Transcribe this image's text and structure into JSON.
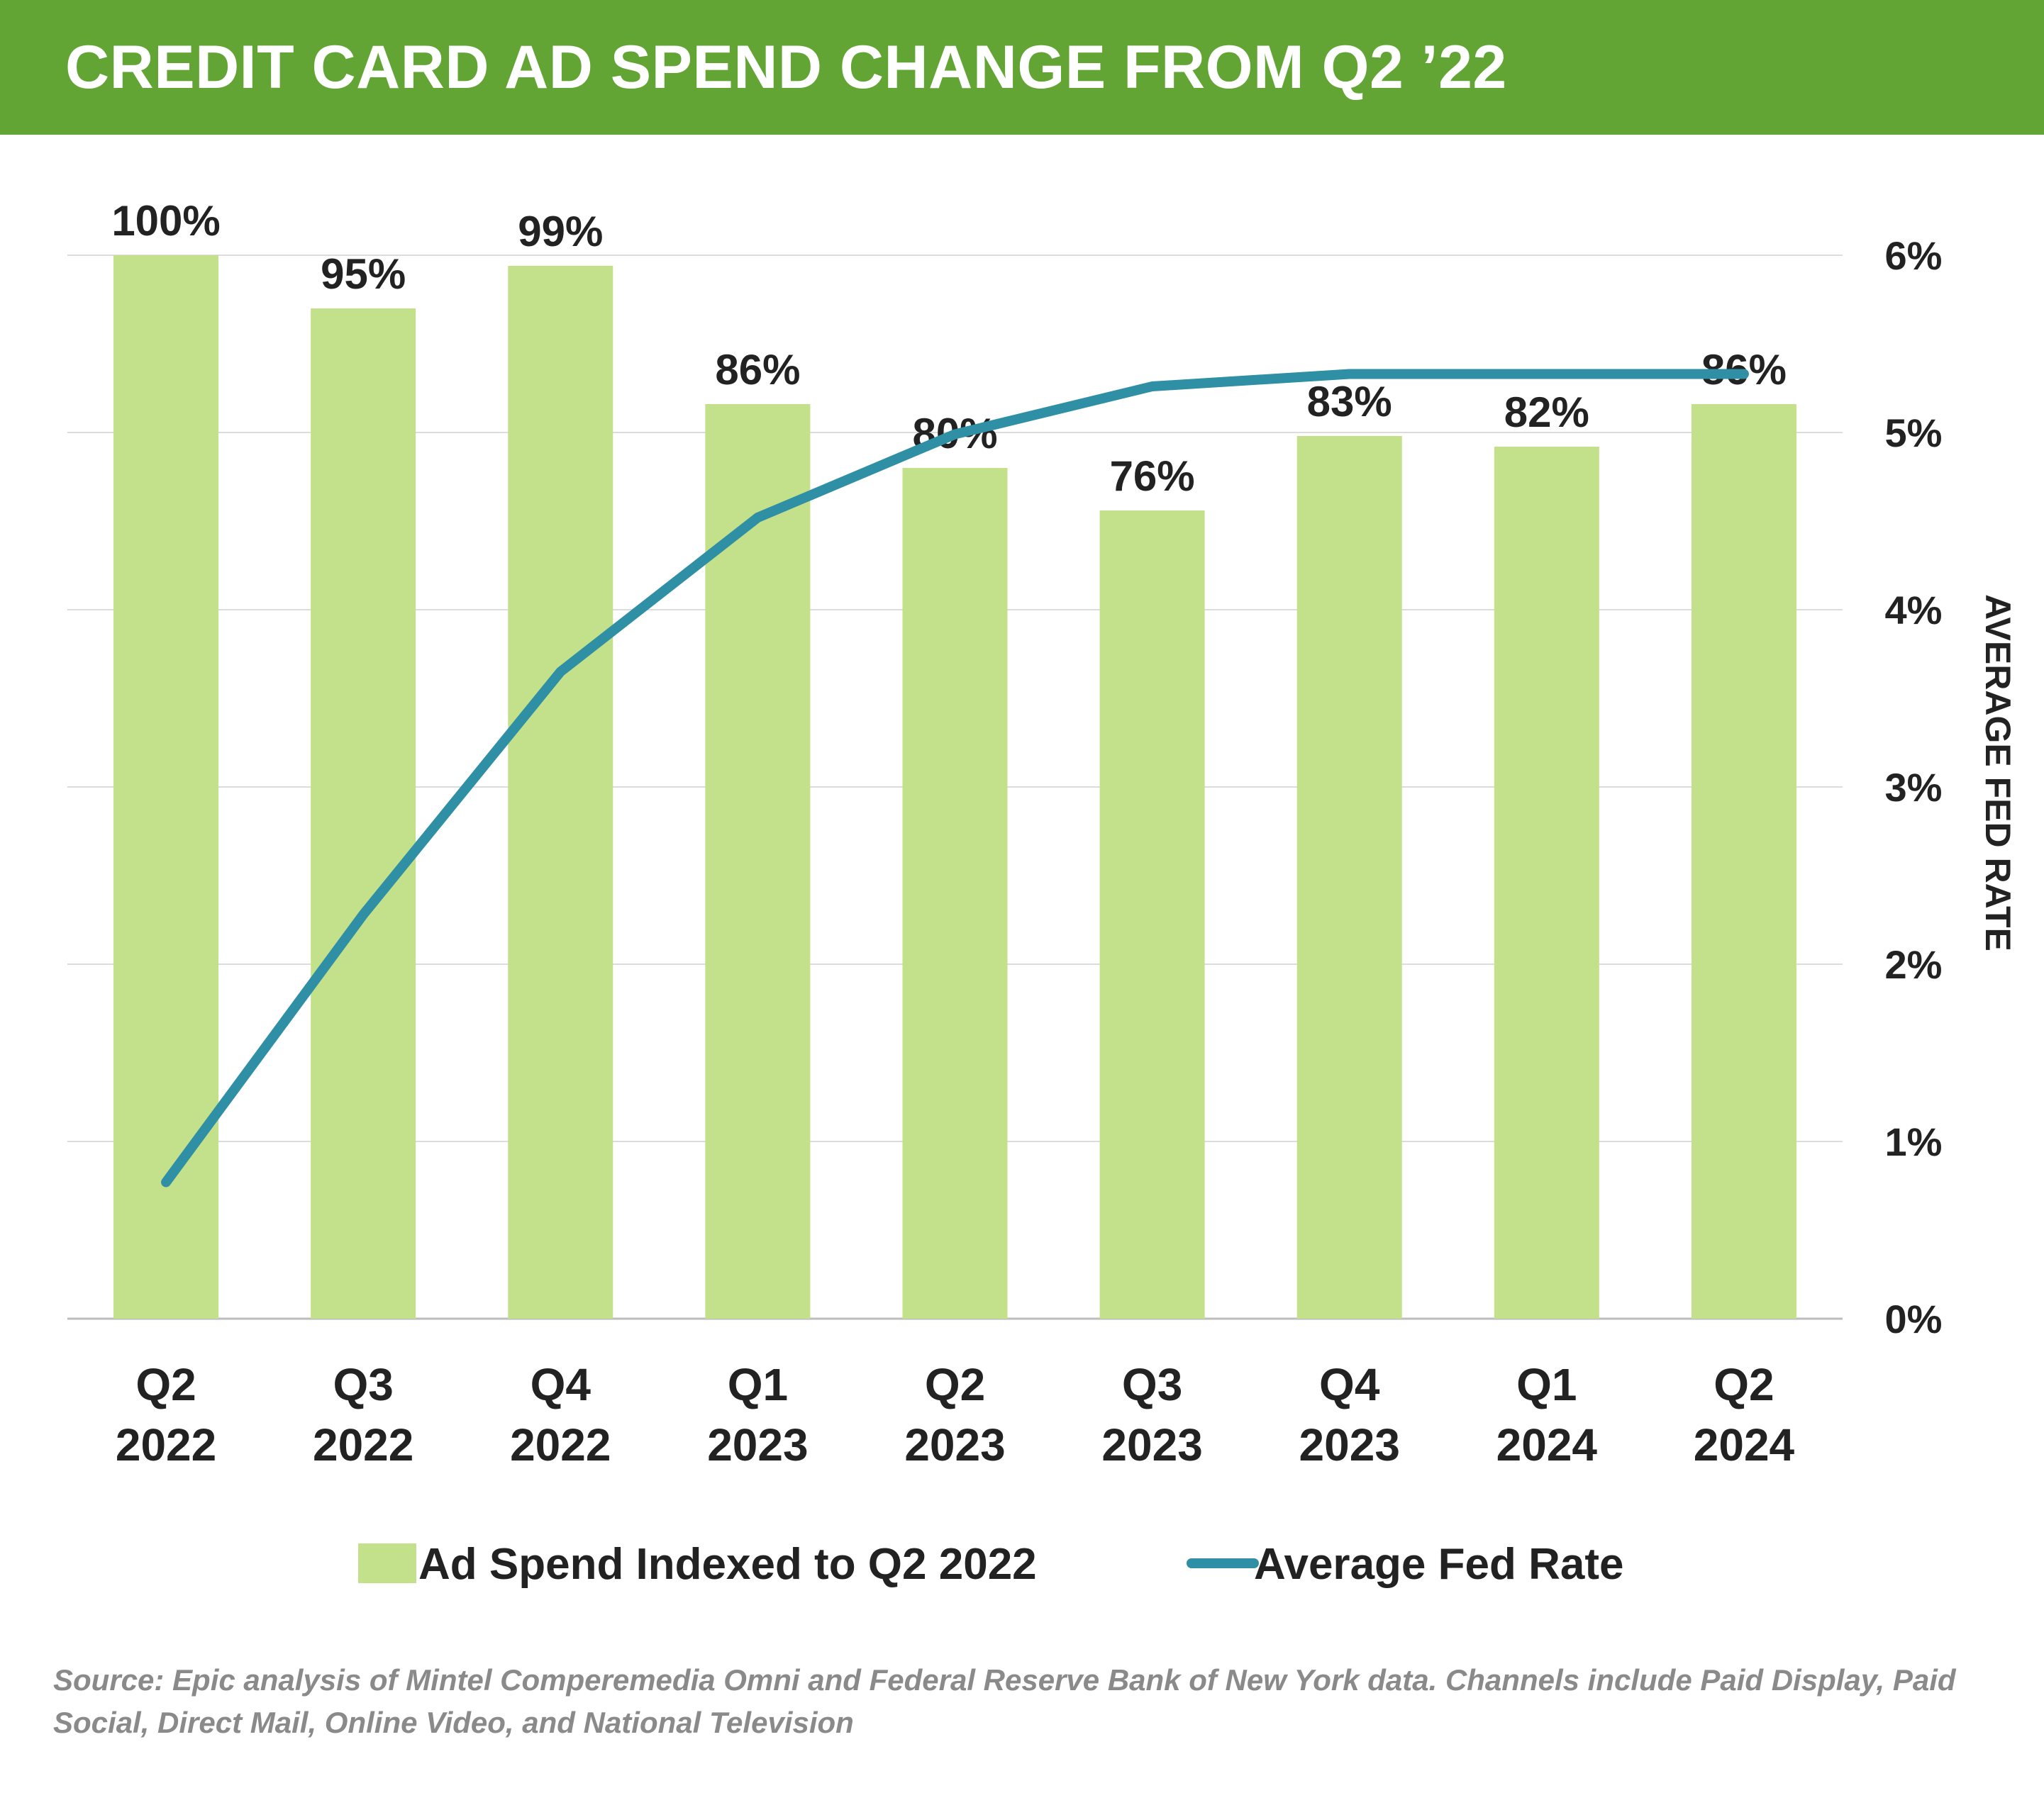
{
  "header": {
    "title": "CREDIT CARD AD SPEND CHANGE FROM Q2 ’22",
    "background": "#63a535"
  },
  "chart_data": {
    "type": "bar+line",
    "title": "CREDIT CARD AD SPEND CHANGE FROM Q2 ’22",
    "categories": [
      [
        "Q2",
        "2022"
      ],
      [
        "Q3",
        "2022"
      ],
      [
        "Q4",
        "2022"
      ],
      [
        "Q1",
        "2023"
      ],
      [
        "Q2",
        "2023"
      ],
      [
        "Q3",
        "2023"
      ],
      [
        "Q4",
        "2023"
      ],
      [
        "Q1",
        "2024"
      ],
      [
        "Q2",
        "2024"
      ]
    ],
    "series": [
      {
        "name": "Ad Spend Indexed to Q2 2022",
        "kind": "bar",
        "axis": "left",
        "color": "#c3e08b",
        "values": [
          100,
          95,
          99,
          86,
          80,
          76,
          83,
          82,
          86
        ],
        "labels": [
          "100%",
          "95%",
          "99%",
          "86%",
          "80%",
          "76%",
          "83%",
          "82%",
          "86%"
        ]
      },
      {
        "name": "Average Fed Rate",
        "kind": "line",
        "axis": "right",
        "color": "#2e8fa5",
        "values": [
          0.77,
          2.28,
          3.65,
          4.52,
          4.99,
          5.26,
          5.33,
          5.33,
          5.33
        ]
      }
    ],
    "y_left": {
      "lim": [
        0,
        100
      ],
      "ticks_shown": false
    },
    "y_right": {
      "label": "AVERAGE FED RATE",
      "lim": [
        0,
        6
      ],
      "ticks": [
        0,
        1,
        2,
        3,
        4,
        5,
        6
      ],
      "tick_labels": [
        "0%",
        "1%",
        "2%",
        "3%",
        "4%",
        "5%",
        "6%"
      ]
    },
    "grid": true,
    "legend": {
      "position": "bottom"
    }
  },
  "source": "Source: Epic analysis of Mintel Comperemedia Omni and Federal Reserve Bank of New York data. Channels include Paid Display, Paid Social, Direct Mail, Online Video, and National Television"
}
